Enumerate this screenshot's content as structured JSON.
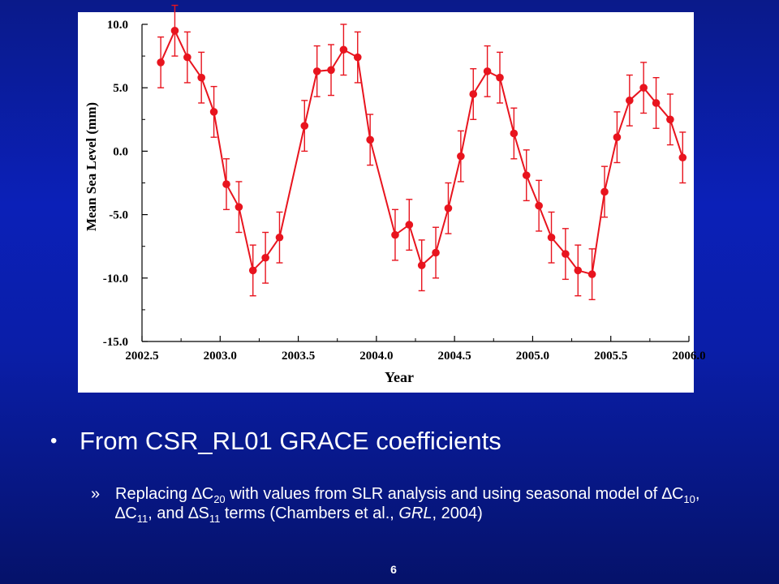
{
  "chart_data": {
    "type": "line",
    "xlabel": "Year",
    "ylabel": "Mean Sea Level (mm)",
    "xlim": [
      2002.5,
      2006.0
    ],
    "ylim": [
      -15.0,
      10.0
    ],
    "x_ticks": [
      "2002.5",
      "2003.0",
      "2003.5",
      "2004.0",
      "2004.5",
      "2005.0",
      "2005.5",
      "2006.0"
    ],
    "y_ticks": [
      "10.0",
      "5.0",
      "0.0",
      "-5.0",
      "-10.0",
      "-15.0"
    ],
    "color": "#e8141e",
    "grid": false,
    "error_bar": 2.0,
    "series": [
      {
        "x": [
          2002.62,
          2002.71,
          2002.79,
          2002.88,
          2002.96,
          2003.04,
          2003.12,
          2003.21,
          2003.29,
          2003.38,
          2003.54,
          2003.62,
          2003.71,
          2003.79,
          2003.88,
          2003.96,
          2004.12,
          2004.21,
          2004.29,
          2004.38,
          2004.46,
          2004.54,
          2004.62,
          2004.71,
          2004.79,
          2004.88,
          2004.96,
          2005.04,
          2005.12,
          2005.21,
          2005.29,
          2005.38,
          2005.46,
          2005.54,
          2005.62,
          2005.71,
          2005.79,
          2005.88,
          2005.96
        ],
        "values": [
          7.0,
          9.5,
          7.4,
          5.8,
          3.1,
          -2.6,
          -4.4,
          -9.4,
          -8.4,
          -6.8,
          2.0,
          6.3,
          6.4,
          8.0,
          7.4,
          0.9,
          -6.6,
          -5.8,
          -9.0,
          -8.0,
          -4.5,
          -0.4,
          4.5,
          6.3,
          5.8,
          1.4,
          -1.9,
          -4.3,
          -6.8,
          -8.1,
          -9.4,
          -9.7,
          -3.2,
          1.1,
          4.0,
          5.0,
          3.8,
          2.5,
          -0.5
        ]
      }
    ]
  },
  "bullets": {
    "main_dot": "•",
    "main_text": "From CSR_RL01 GRACE coefficients",
    "sub_mark": "»",
    "sub": {
      "t1": "Replacing ∆C",
      "s1": "20",
      "t2": " with values from SLR analysis and using seasonal model of ∆C",
      "s2": "10",
      "t3": ", ∆C",
      "s3": "11",
      "t4": ", and ∆S",
      "s4": "11",
      "t5": " terms (Chambers et al., ",
      "italic": "GRL",
      "t6": ", 2004)"
    }
  },
  "page_number": "6"
}
